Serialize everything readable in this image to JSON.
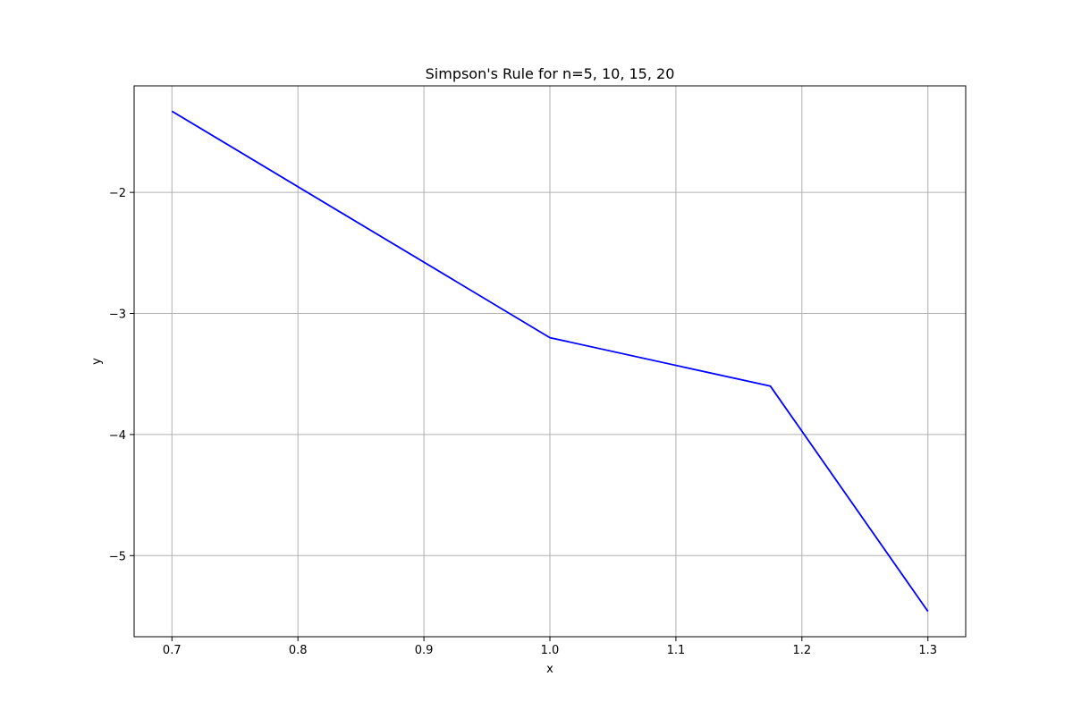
{
  "chart_data": {
    "type": "line",
    "title": "Simpson's Rule for n=5, 10, 15, 20",
    "xlabel": "x",
    "ylabel": "y",
    "xlim": [
      0.67,
      1.33
    ],
    "ylim": [
      -5.67,
      -1.12
    ],
    "xticks": [
      0.7,
      0.8,
      0.9,
      1.0,
      1.1,
      1.2,
      1.3
    ],
    "xtick_labels": [
      "0.7",
      "0.8",
      "0.9",
      "1.0",
      "1.1",
      "1.2",
      "1.3"
    ],
    "yticks": [
      -2,
      -3,
      -4,
      -5
    ],
    "ytick_labels": [
      "−2",
      "−3",
      "−4",
      "−5"
    ],
    "grid": true,
    "series": [
      {
        "color": "#0000ff",
        "x": [
          0.7,
          1.0,
          1.175,
          1.3
        ],
        "y": [
          -1.33,
          -3.2,
          -3.6,
          -5.46
        ]
      }
    ]
  }
}
